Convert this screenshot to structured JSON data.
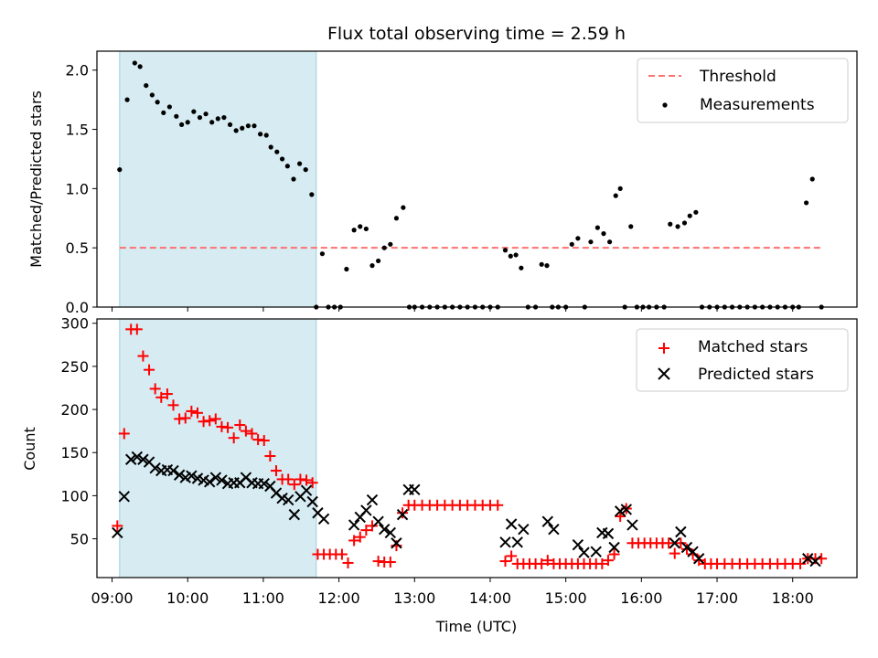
{
  "chart_data": [
    {
      "type": "scatter",
      "title": "Flux total observing time = 2.59 h",
      "xlabel": "",
      "ylabel": "Matched/Predicted stars",
      "xlim": [
        8.8,
        18.85
      ],
      "ylim": [
        0,
        2.16
      ],
      "yticks": [
        0.0,
        0.5,
        1.0,
        1.5,
        2.0
      ],
      "ytick_labels": [
        "0.0",
        "0.5",
        "1.0",
        "1.5",
        "2.0"
      ],
      "highlight_span": [
        9.1,
        11.7
      ],
      "threshold": {
        "name": "Threshold",
        "value": 0.5,
        "x_range": [
          9.1,
          18.4
        ],
        "color": "#ff7070"
      },
      "series": [
        {
          "name": "Measurements",
          "color": "#000000",
          "x": [
            9.1,
            9.2,
            9.3,
            9.37,
            9.45,
            9.53,
            9.6,
            9.68,
            9.76,
            9.85,
            9.92,
            10.0,
            10.08,
            10.16,
            10.24,
            10.32,
            10.4,
            10.48,
            10.56,
            10.64,
            10.72,
            10.8,
            10.88,
            10.96,
            11.04,
            11.1,
            11.18,
            11.25,
            11.32,
            11.4,
            11.48,
            11.56,
            11.64,
            11.7,
            11.78,
            11.86,
            11.94,
            12.02,
            12.1,
            12.2,
            12.28,
            12.36,
            12.44,
            12.52,
            12.6,
            12.68,
            12.76,
            12.85,
            12.93,
            13.0,
            13.1,
            13.2,
            13.3,
            13.4,
            13.5,
            13.6,
            13.7,
            13.8,
            13.9,
            14.0,
            14.1,
            14.2,
            14.27,
            14.34,
            14.41,
            14.5,
            14.6,
            14.68,
            14.75,
            14.82,
            14.9,
            15.0,
            15.08,
            15.16,
            15.25,
            15.33,
            15.42,
            15.5,
            15.58,
            15.66,
            15.72,
            15.78,
            15.86,
            15.94,
            16.02,
            16.1,
            16.2,
            16.3,
            16.38,
            16.48,
            16.57,
            16.64,
            16.72,
            16.8,
            16.9,
            17.0,
            17.1,
            17.2,
            17.3,
            17.4,
            17.5,
            17.6,
            17.7,
            17.8,
            17.9,
            18.0,
            18.08,
            18.18,
            18.26,
            18.38
          ],
          "values": [
            1.16,
            1.75,
            2.06,
            2.03,
            1.87,
            1.79,
            1.73,
            1.64,
            1.69,
            1.61,
            1.54,
            1.56,
            1.65,
            1.6,
            1.63,
            1.56,
            1.59,
            1.6,
            1.54,
            1.49,
            1.51,
            1.53,
            1.53,
            1.46,
            1.45,
            1.35,
            1.31,
            1.25,
            1.19,
            1.08,
            1.21,
            1.16,
            0.95,
            0.0,
            0.45,
            0.0,
            0.0,
            0.0,
            0.32,
            0.65,
            0.68,
            0.66,
            0.35,
            0.39,
            0.5,
            0.53,
            0.75,
            0.84,
            0.0,
            0.0,
            0.0,
            0.0,
            0.0,
            0.0,
            0.0,
            0.0,
            0.0,
            0.0,
            0.0,
            0.0,
            0.0,
            0.48,
            0.43,
            0.44,
            0.33,
            0.0,
            0.0,
            0.36,
            0.35,
            0.0,
            0.0,
            0.0,
            0.53,
            0.58,
            0.0,
            0.55,
            0.67,
            0.62,
            0.55,
            0.94,
            1.0,
            0.0,
            0.68,
            0.0,
            0.0,
            0.0,
            0.0,
            0.0,
            0.7,
            0.68,
            0.71,
            0.77,
            0.8,
            0.0,
            0.0,
            0.0,
            0.0,
            0.0,
            0.0,
            0.0,
            0.0,
            0.0,
            0.0,
            0.0,
            0.0,
            0.0,
            0.0,
            0.88,
            1.08,
            0.0
          ]
        }
      ],
      "legend": {
        "position": "top-right",
        "entries": [
          "Threshold",
          "Measurements"
        ]
      },
      "grid": false
    },
    {
      "type": "scatter",
      "title": "",
      "xlabel": "Time (UTC)",
      "ylabel": "Count",
      "xlim": [
        8.8,
        18.85
      ],
      "ylim": [
        5,
        305
      ],
      "xticks": [
        9,
        10,
        11,
        12,
        13,
        14,
        15,
        16,
        17,
        18
      ],
      "xtick_labels": [
        "09:00",
        "10:00",
        "11:00",
        "12:00",
        "13:00",
        "14:00",
        "15:00",
        "16:00",
        "17:00",
        "18:00"
      ],
      "yticks": [
        50,
        100,
        150,
        200,
        250,
        300
      ],
      "ytick_labels": [
        "50",
        "100",
        "150",
        "200",
        "250",
        "300"
      ],
      "highlight_span": [
        9.1,
        11.7
      ],
      "series": [
        {
          "name": "Matched stars",
          "marker": "+",
          "color": "#ff0000",
          "x": [
            9.07,
            9.16,
            9.25,
            9.33,
            9.41,
            9.49,
            9.57,
            9.65,
            9.73,
            9.81,
            9.89,
            9.97,
            10.05,
            10.13,
            10.21,
            10.29,
            10.37,
            10.45,
            10.53,
            10.61,
            10.69,
            10.77,
            10.85,
            10.93,
            11.01,
            11.09,
            11.17,
            11.25,
            11.33,
            11.41,
            11.49,
            11.57,
            11.65,
            11.72,
            11.8,
            11.88,
            11.96,
            12.04,
            12.12,
            12.2,
            12.28,
            12.36,
            12.44,
            12.52,
            12.6,
            12.68,
            12.76,
            12.84,
            12.92,
            13.0,
            13.1,
            13.2,
            13.3,
            13.4,
            13.5,
            13.6,
            13.7,
            13.8,
            13.9,
            14.0,
            14.1,
            14.2,
            14.28,
            14.36,
            14.44,
            14.52,
            14.6,
            14.68,
            14.76,
            14.84,
            14.92,
            15.0,
            15.08,
            15.16,
            15.24,
            15.32,
            15.4,
            15.48,
            15.56,
            15.64,
            15.72,
            15.8,
            15.88,
            15.96,
            16.04,
            16.12,
            16.2,
            16.28,
            16.36,
            16.44,
            16.52,
            16.6,
            16.68,
            16.76,
            16.84,
            16.92,
            17.0,
            17.1,
            17.2,
            17.3,
            17.4,
            17.5,
            17.6,
            17.7,
            17.8,
            17.9,
            18.0,
            18.1,
            18.2,
            18.3,
            18.38
          ],
          "values": [
            65,
            172,
            293,
            293,
            262,
            246,
            224,
            214,
            218,
            205,
            189,
            190,
            198,
            196,
            186,
            187,
            189,
            180,
            179,
            167,
            182,
            175,
            172,
            165,
            164,
            146,
            129,
            119,
            119,
            113,
            119,
            118,
            115,
            32,
            32,
            32,
            32,
            32,
            22,
            48,
            52,
            60,
            65,
            24,
            23,
            23,
            42,
            80,
            89,
            89,
            89,
            89,
            89,
            89,
            89,
            89,
            89,
            89,
            89,
            89,
            89,
            24,
            30,
            21,
            21,
            21,
            21,
            21,
            25,
            21,
            21,
            21,
            21,
            21,
            21,
            21,
            21,
            21,
            25,
            32,
            76,
            85,
            45,
            45,
            45,
            45,
            45,
            45,
            45,
            33,
            45,
            38,
            32,
            25,
            21,
            21,
            21,
            21,
            21,
            21,
            21,
            21,
            21,
            21,
            21,
            21,
            21,
            21,
            27,
            27,
            27
          ]
        },
        {
          "name": "Predicted stars",
          "marker": "x",
          "color": "#000000",
          "x": [
            9.07,
            9.16,
            9.25,
            9.33,
            9.41,
            9.49,
            9.57,
            9.65,
            9.73,
            9.81,
            9.89,
            9.97,
            10.05,
            10.13,
            10.21,
            10.29,
            10.37,
            10.45,
            10.53,
            10.61,
            10.69,
            10.77,
            10.85,
            10.93,
            11.01,
            11.09,
            11.17,
            11.25,
            11.33,
            11.41,
            11.49,
            11.57,
            11.65,
            11.72,
            11.8,
            12.2,
            12.28,
            12.36,
            12.44,
            12.52,
            12.6,
            12.68,
            12.76,
            12.84,
            12.92,
            13.0,
            14.2,
            14.28,
            14.36,
            14.44,
            14.76,
            14.84,
            15.16,
            15.24,
            15.4,
            15.48,
            15.56,
            15.64,
            15.72,
            15.8,
            15.88,
            16.44,
            16.52,
            16.6,
            16.68,
            16.76,
            18.2,
            18.3
          ],
          "values": [
            57,
            99,
            142,
            145,
            142,
            139,
            132,
            129,
            130,
            129,
            124,
            121,
            123,
            120,
            118,
            116,
            121,
            118,
            114,
            115,
            115,
            121,
            115,
            114,
            114,
            111,
            103,
            97,
            95,
            78,
            99,
            106,
            93,
            80,
            73,
            66,
            75,
            83,
            95,
            70,
            61,
            57,
            45,
            78,
            107,
            107,
            46,
            67,
            46,
            61,
            70,
            61,
            43,
            34,
            35,
            57,
            56,
            40,
            82,
            84,
            66,
            45,
            58,
            40,
            35,
            27,
            27,
            24
          ]
        }
      ],
      "legend": {
        "position": "top-right",
        "entries": [
          "Matched stars",
          "Predicted stars"
        ]
      },
      "grid": false
    }
  ]
}
